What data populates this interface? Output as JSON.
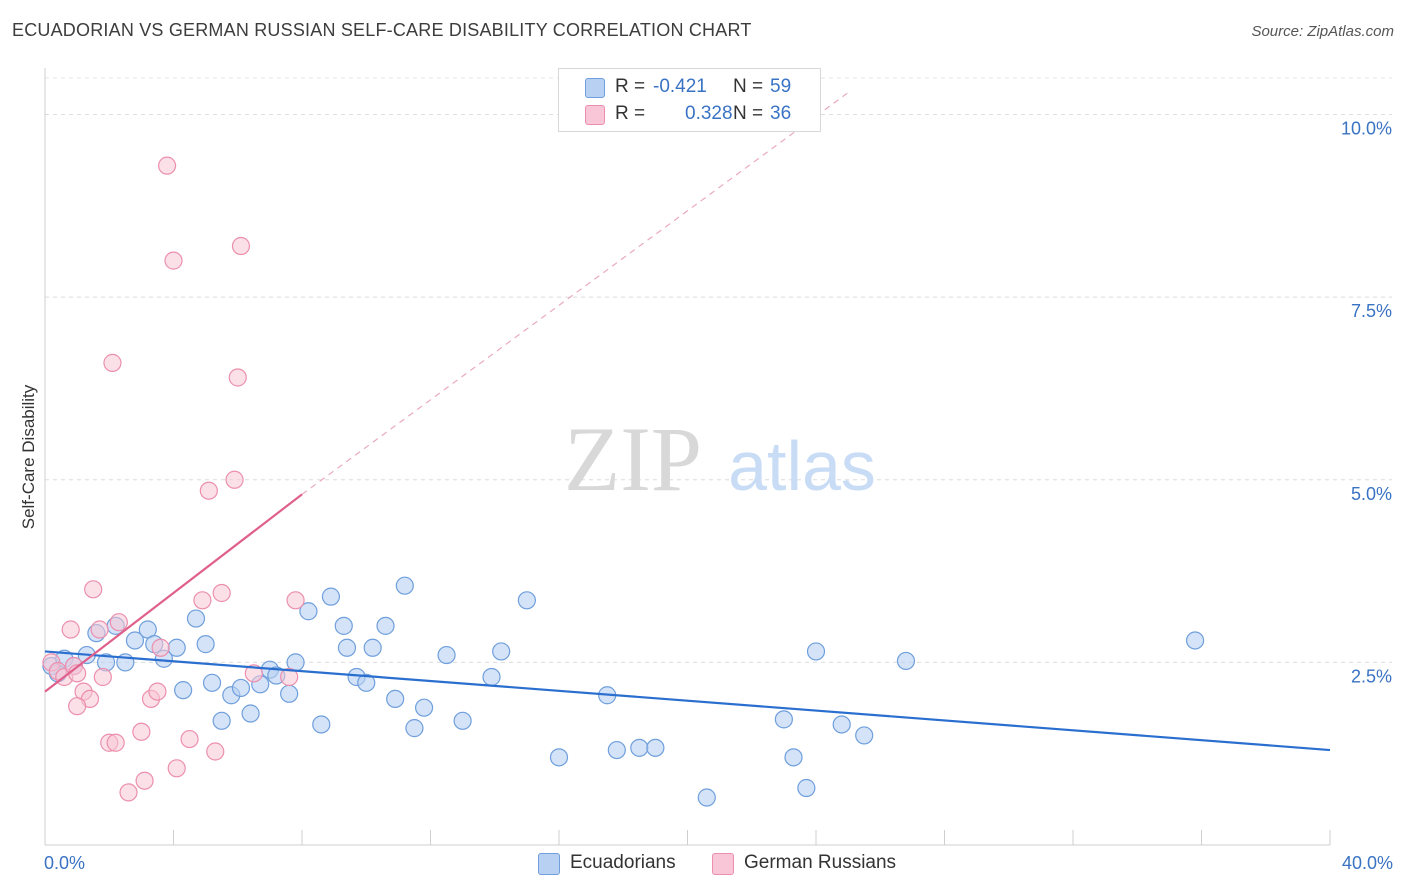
{
  "title": "ECUADORIAN VS GERMAN RUSSIAN SELF-CARE DISABILITY CORRELATION CHART",
  "source": "Source: ZipAtlas.com",
  "watermark": {
    "zip": "ZIP",
    "atlas": "atlas"
  },
  "colors": {
    "blue_fill": "#b8d0f2",
    "blue_stroke": "#6f9fdc",
    "blue_line": "#2a6fcf",
    "pink_fill": "#f8c6d6",
    "pink_stroke": "#ec8fae",
    "pink_line": "#e0608c",
    "axis_text": "#3a73c4"
  },
  "legend_stats": [
    {
      "r_label": "R =",
      "r_value": "-0.421",
      "n_label": "N =",
      "n_value": "59"
    },
    {
      "r_label": "R =",
      "r_value": "0.328",
      "n_label": "N =",
      "n_value": "36"
    }
  ],
  "chart_data": {
    "type": "scatter",
    "title": "ECUADORIAN VS GERMAN RUSSIAN SELF-CARE DISABILITY CORRELATION CHART",
    "xlabel": "",
    "ylabel": "Self-Care Disability",
    "xlim": [
      0,
      40
    ],
    "ylim": [
      0,
      10.5
    ],
    "x_tick_labels": [
      "0.0%",
      "40.0%"
    ],
    "y_ticks": [
      2.5,
      5.0,
      7.5,
      10.0
    ],
    "y_tick_labels": [
      "2.5%",
      "5.0%",
      "7.5%",
      "10.0%"
    ],
    "grid": "horizontal dashed",
    "legend_placement": "bottom-center",
    "series": [
      {
        "name": "Ecuadorians",
        "trend": {
          "x": [
            0,
            40
          ],
          "y": [
            2.65,
            1.3
          ]
        },
        "points": [
          [
            0.2,
            2.45
          ],
          [
            0.4,
            2.35
          ],
          [
            0.6,
            2.55
          ],
          [
            0.9,
            2.45
          ],
          [
            1.3,
            2.6
          ],
          [
            1.6,
            2.9
          ],
          [
            1.9,
            2.5
          ],
          [
            2.2,
            3.0
          ],
          [
            2.5,
            2.5
          ],
          [
            2.8,
            2.8
          ],
          [
            3.2,
            2.95
          ],
          [
            3.4,
            2.75
          ],
          [
            3.7,
            2.55
          ],
          [
            4.1,
            2.7
          ],
          [
            4.3,
            2.12
          ],
          [
            4.7,
            3.1
          ],
          [
            5.0,
            2.75
          ],
          [
            5.2,
            2.22
          ],
          [
            5.5,
            1.7
          ],
          [
            5.8,
            2.05
          ],
          [
            6.1,
            2.15
          ],
          [
            6.4,
            1.8
          ],
          [
            6.7,
            2.2
          ],
          [
            7.0,
            2.4
          ],
          [
            7.2,
            2.32
          ],
          [
            7.6,
            2.07
          ],
          [
            7.8,
            2.5
          ],
          [
            8.2,
            3.2
          ],
          [
            8.6,
            1.65
          ],
          [
            8.9,
            3.4
          ],
          [
            9.3,
            3.0
          ],
          [
            9.7,
            2.3
          ],
          [
            9.4,
            2.7
          ],
          [
            10.0,
            2.22
          ],
          [
            10.2,
            2.7
          ],
          [
            10.6,
            3.0
          ],
          [
            10.9,
            2.0
          ],
          [
            11.2,
            3.55
          ],
          [
            11.5,
            1.6
          ],
          [
            11.8,
            1.88
          ],
          [
            12.5,
            2.6
          ],
          [
            13.0,
            1.7
          ],
          [
            13.9,
            2.3
          ],
          [
            14.2,
            2.65
          ],
          [
            15.0,
            3.35
          ],
          [
            16.0,
            1.2
          ],
          [
            17.5,
            2.05
          ],
          [
            17.8,
            1.3
          ],
          [
            18.5,
            1.33
          ],
          [
            19.0,
            1.33
          ],
          [
            20.6,
            0.65
          ],
          [
            23.0,
            1.72
          ],
          [
            23.3,
            1.2
          ],
          [
            23.7,
            0.78
          ],
          [
            24.0,
            2.65
          ],
          [
            24.8,
            1.65
          ],
          [
            25.5,
            1.5
          ],
          [
            26.8,
            2.52
          ],
          [
            35.8,
            2.8
          ]
        ]
      },
      {
        "name": "German Russians",
        "trend": {
          "x": [
            0,
            8
          ],
          "y": [
            2.1,
            4.8
          ]
        },
        "trend_dashed": {
          "x": [
            8,
            25
          ],
          "y": [
            4.8,
            10.3
          ]
        },
        "points": [
          [
            0.2,
            2.5
          ],
          [
            0.4,
            2.38
          ],
          [
            0.6,
            2.3
          ],
          [
            0.9,
            2.45
          ],
          [
            1.0,
            2.35
          ],
          [
            1.2,
            2.1
          ],
          [
            1.4,
            2.0
          ],
          [
            0.8,
            2.95
          ],
          [
            1.0,
            1.9
          ],
          [
            1.5,
            3.5
          ],
          [
            1.7,
            2.95
          ],
          [
            1.8,
            2.3
          ],
          [
            2.0,
            1.4
          ],
          [
            2.2,
            1.4
          ],
          [
            2.3,
            3.05
          ],
          [
            2.6,
            0.72
          ],
          [
            3.0,
            1.55
          ],
          [
            3.1,
            0.88
          ],
          [
            3.3,
            2.0
          ],
          [
            3.5,
            2.1
          ],
          [
            3.6,
            2.7
          ],
          [
            3.8,
            9.3
          ],
          [
            4.0,
            8.0
          ],
          [
            4.1,
            1.05
          ],
          [
            4.5,
            1.45
          ],
          [
            4.9,
            3.35
          ],
          [
            5.1,
            4.85
          ],
          [
            5.3,
            1.28
          ],
          [
            5.5,
            3.45
          ],
          [
            5.9,
            5.0
          ],
          [
            6.0,
            6.4
          ],
          [
            6.1,
            8.2
          ],
          [
            6.5,
            2.35
          ],
          [
            7.6,
            2.3
          ],
          [
            7.8,
            3.35
          ],
          [
            2.1,
            6.6
          ]
        ]
      }
    ]
  }
}
